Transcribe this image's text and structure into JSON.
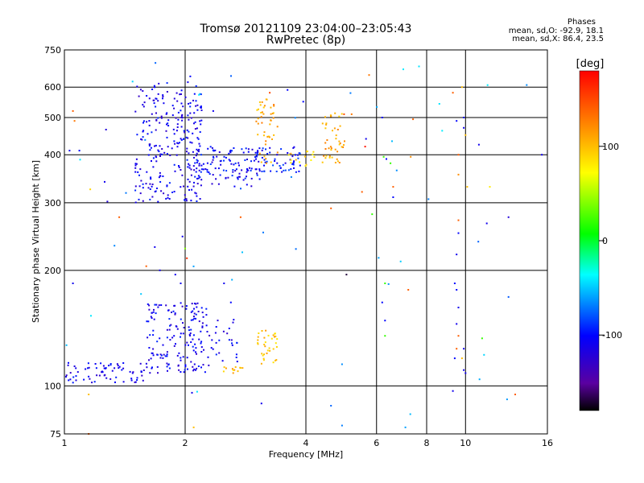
{
  "chart_data": {
    "type": "scatter",
    "title": "Tromsø 20121109 23:04:00–23:05:43",
    "subtitle": "RwPretec (8p)",
    "xlabel": "Frequency [MHz]",
    "ylabel": "Stationary phase Virtual Height [km]",
    "x_scale": "log",
    "y_scale": "log",
    "xlim": [
      1,
      16
    ],
    "ylim": [
      75,
      750
    ],
    "x_ticks": [
      1,
      2,
      4,
      6,
      8,
      10,
      16
    ],
    "x_tick_labels": [
      "1",
      "2",
      "4",
      "6",
      "8",
      "10",
      "16"
    ],
    "y_ticks": [
      75,
      100,
      200,
      300,
      400,
      500,
      600,
      750
    ],
    "y_tick_labels": [
      "75",
      "100",
      "200",
      "300",
      "400",
      "500",
      "600",
      "750"
    ],
    "grid": true,
    "colorbar": {
      "title": "[deg]",
      "range": [
        -180,
        180
      ],
      "ticks": [
        -100,
        0,
        100
      ],
      "tick_labels": [
        "-100",
        "0",
        "100"
      ]
    },
    "annotations": {
      "heading": "Phases",
      "line_o": "mean, sd,O: -92.9, 18.1",
      "line_x": "mean, sd,X:  86.4, 23.5"
    },
    "clusters": [
      {
        "x_range": [
          1.5,
          2.2
        ],
        "y_range": [
          300,
          620
        ],
        "phase": -110,
        "count": 260
      },
      {
        "x_range": [
          2.1,
          3.1
        ],
        "y_range": [
          330,
          420
        ],
        "phase": -105,
        "count": 120
      },
      {
        "x_range": [
          3.0,
          3.9
        ],
        "y_range": [
          360,
          420
        ],
        "phase": -100,
        "count": 60
      },
      {
        "x_range": [
          3.0,
          3.4
        ],
        "y_range": [
          380,
          560
        ],
        "phase": 110,
        "count": 45
      },
      {
        "x_range": [
          4.4,
          5.0
        ],
        "y_range": [
          380,
          520
        ],
        "phase": 110,
        "count": 45
      },
      {
        "x_range": [
          3.6,
          4.2
        ],
        "y_range": [
          370,
          410
        ],
        "phase": 90,
        "count": 15
      },
      {
        "x_range": [
          1.0,
          1.6
        ],
        "y_range": [
          102,
          115
        ],
        "phase": -110,
        "count": 70
      },
      {
        "x_range": [
          1.6,
          2.3
        ],
        "y_range": [
          108,
          165
        ],
        "phase": -110,
        "count": 170
      },
      {
        "x_range": [
          2.3,
          2.7
        ],
        "y_range": [
          112,
          150
        ],
        "phase": -110,
        "count": 25
      },
      {
        "x_range": [
          2.4,
          2.8
        ],
        "y_range": [
          108,
          112
        ],
        "phase": 100,
        "count": 12
      },
      {
        "x_range": [
          3.0,
          3.4
        ],
        "y_range": [
          112,
          140
        ],
        "phase": 100,
        "count": 35
      },
      {
        "x_range": [
          1.0,
          16.0
        ],
        "y_range": [
          75,
          750
        ],
        "phase": -60,
        "count": 45
      }
    ],
    "points": [
      {
        "x": 1.05,
        "y": 520,
        "phase": 140
      },
      {
        "x": 1.06,
        "y": 490,
        "phase": 130
      },
      {
        "x": 1.03,
        "y": 410,
        "phase": -110
      },
      {
        "x": 1.09,
        "y": 410,
        "phase": -100
      },
      {
        "x": 1.16,
        "y": 325,
        "phase": 90
      },
      {
        "x": 1.26,
        "y": 340,
        "phase": -110
      },
      {
        "x": 1.28,
        "y": 302,
        "phase": -120
      },
      {
        "x": 1.27,
        "y": 465,
        "phase": -120
      },
      {
        "x": 1.37,
        "y": 275,
        "phase": 140
      },
      {
        "x": 1.68,
        "y": 230,
        "phase": -110
      },
      {
        "x": 1.97,
        "y": 245,
        "phase": -110
      },
      {
        "x": 2.0,
        "y": 228,
        "phase": 40
      },
      {
        "x": 2.02,
        "y": 215,
        "phase": 160
      },
      {
        "x": 2.06,
        "y": 640,
        "phase": -100
      },
      {
        "x": 2.35,
        "y": 520,
        "phase": -110
      },
      {
        "x": 2.75,
        "y": 275,
        "phase": 140
      },
      {
        "x": 3.25,
        "y": 580,
        "phase": 150
      },
      {
        "x": 3.6,
        "y": 590,
        "phase": -100
      },
      {
        "x": 3.94,
        "y": 550,
        "phase": -100
      },
      {
        "x": 4.62,
        "y": 290,
        "phase": 140
      },
      {
        "x": 4.98,
        "y": 510,
        "phase": 150
      },
      {
        "x": 5.2,
        "y": 510,
        "phase": 130
      },
      {
        "x": 5.52,
        "y": 320,
        "phase": 140
      },
      {
        "x": 5.62,
        "y": 420,
        "phase": 170
      },
      {
        "x": 5.65,
        "y": 440,
        "phase": -110
      },
      {
        "x": 5.75,
        "y": 645,
        "phase": 130
      },
      {
        "x": 5.85,
        "y": 280,
        "phase": 20
      },
      {
        "x": 6.2,
        "y": 500,
        "phase": -100
      },
      {
        "x": 6.25,
        "y": 395,
        "phase": 20
      },
      {
        "x": 6.35,
        "y": 390,
        "phase": -100
      },
      {
        "x": 6.5,
        "y": 380,
        "phase": 20
      },
      {
        "x": 6.6,
        "y": 330,
        "phase": 140
      },
      {
        "x": 6.6,
        "y": 310,
        "phase": -100
      },
      {
        "x": 7.3,
        "y": 395,
        "phase": 120
      },
      {
        "x": 7.4,
        "y": 495,
        "phase": 140
      },
      {
        "x": 9.3,
        "y": 580,
        "phase": 140
      },
      {
        "x": 9.5,
        "y": 490,
        "phase": -100
      },
      {
        "x": 9.8,
        "y": 600,
        "phase": 100
      },
      {
        "x": 9.9,
        "y": 500,
        "phase": -110
      },
      {
        "x": 9.9,
        "y": 470,
        "phase": -110
      },
      {
        "x": 10.0,
        "y": 450,
        "phase": 100
      },
      {
        "x": 9.6,
        "y": 400,
        "phase": 140
      },
      {
        "x": 9.6,
        "y": 355,
        "phase": 120
      },
      {
        "x": 10.1,
        "y": 330,
        "phase": 100
      },
      {
        "x": 10.8,
        "y": 425,
        "phase": -110
      },
      {
        "x": 11.5,
        "y": 330,
        "phase": 80
      },
      {
        "x": 11.3,
        "y": 265,
        "phase": -110
      },
      {
        "x": 12.8,
        "y": 275,
        "phase": -120
      },
      {
        "x": 15.5,
        "y": 400,
        "phase": -110
      },
      {
        "x": 9.6,
        "y": 270,
        "phase": 140
      },
      {
        "x": 9.5,
        "y": 220,
        "phase": -110
      },
      {
        "x": 9.6,
        "y": 250,
        "phase": -100
      },
      {
        "x": 5.05,
        "y": 195,
        "phase": -170
      },
      {
        "x": 6.3,
        "y": 185,
        "phase": 20
      },
      {
        "x": 6.2,
        "y": 165,
        "phase": -100
      },
      {
        "x": 6.3,
        "y": 148,
        "phase": -100
      },
      {
        "x": 6.3,
        "y": 135,
        "phase": 20
      },
      {
        "x": 7.2,
        "y": 178,
        "phase": 140
      },
      {
        "x": 9.4,
        "y": 185,
        "phase": -100
      },
      {
        "x": 9.5,
        "y": 178,
        "phase": -100
      },
      {
        "x": 9.6,
        "y": 160,
        "phase": -110
      },
      {
        "x": 9.5,
        "y": 145,
        "phase": -110
      },
      {
        "x": 9.6,
        "y": 135,
        "phase": 140
      },
      {
        "x": 9.5,
        "y": 125,
        "phase": 140
      },
      {
        "x": 9.4,
        "y": 118,
        "phase": -100
      },
      {
        "x": 9.9,
        "y": 125,
        "phase": -110
      },
      {
        "x": 9.8,
        "y": 118,
        "phase": 100
      },
      {
        "x": 9.9,
        "y": 110,
        "phase": -110
      },
      {
        "x": 10.0,
        "y": 108,
        "phase": -110
      },
      {
        "x": 11.0,
        "y": 133,
        "phase": 20
      },
      {
        "x": 13.3,
        "y": 95,
        "phase": 140
      },
      {
        "x": 9.3,
        "y": 97,
        "phase": -110
      },
      {
        "x": 1.05,
        "y": 185,
        "phase": -110
      },
      {
        "x": 1.15,
        "y": 95,
        "phase": 100
      },
      {
        "x": 1.6,
        "y": 205,
        "phase": 140
      },
      {
        "x": 1.73,
        "y": 200,
        "phase": -110
      },
      {
        "x": 1.89,
        "y": 195,
        "phase": -110
      },
      {
        "x": 1.95,
        "y": 185,
        "phase": -110
      },
      {
        "x": 2.08,
        "y": 96,
        "phase": -110
      },
      {
        "x": 2.1,
        "y": 78,
        "phase": 100
      },
      {
        "x": 2.5,
        "y": 185,
        "phase": -110
      },
      {
        "x": 2.6,
        "y": 165,
        "phase": -100
      },
      {
        "x": 3.1,
        "y": 90,
        "phase": -110
      },
      {
        "x": 1.15,
        "y": 75,
        "phase": 140
      }
    ]
  },
  "colors": {
    "axis": "#000000",
    "grid": "#000000",
    "background": "#ffffff"
  }
}
